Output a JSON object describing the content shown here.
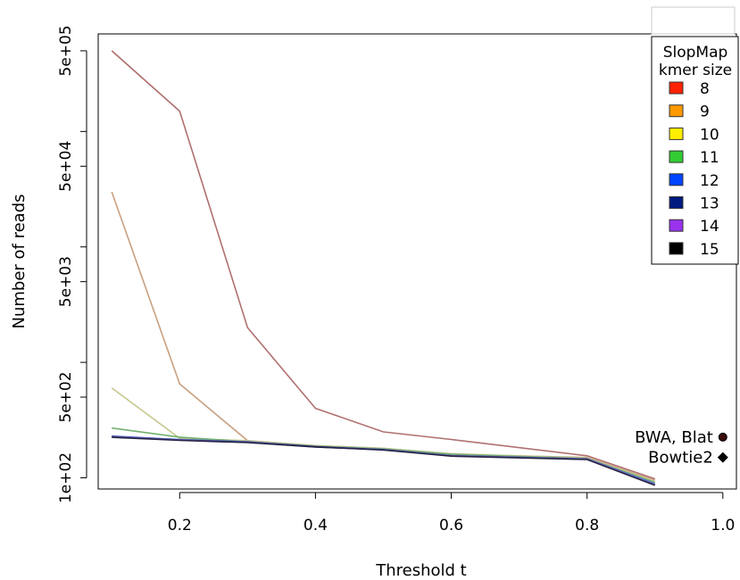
{
  "chart_data": {
    "type": "line",
    "xlabel": "Threshold t",
    "ylabel": "Number of reads",
    "x_scale": "linear",
    "y_scale": "log",
    "xlim": [
      0.08,
      1.02
    ],
    "ylim": [
      80,
      700000
    ],
    "x_ticks": [
      0.2,
      0.4,
      0.6,
      0.8,
      1.0
    ],
    "x_tick_labels": [
      "0.2",
      "0.4",
      "0.6",
      "0.8",
      "1.0"
    ],
    "y_ticks": [
      100,
      500,
      5000,
      50000,
      500000
    ],
    "y_tick_labels": [
      "1e+02",
      "5e+02",
      "5e+03",
      "5e+04",
      "5e+05"
    ],
    "y_minor_ticks": [
      1000,
      10000,
      100000
    ],
    "grid": false,
    "legend": {
      "title_line1": "SlopMap",
      "title_line2": "kmer size",
      "placement": "top-right",
      "entries": [
        {
          "label": "8",
          "color": "#ff2200"
        },
        {
          "label": "9",
          "color": "#ff9900"
        },
        {
          "label": "10",
          "color": "#ffee00"
        },
        {
          "label": "11",
          "color": "#33cc33"
        },
        {
          "label": "12",
          "color": "#0044ff"
        },
        {
          "label": "13",
          "color": "#001a80"
        },
        {
          "label": "14",
          "color": "#9933ee"
        },
        {
          "label": "15",
          "color": "#000000"
        }
      ]
    },
    "x": [
      0.1,
      0.2,
      0.3,
      0.4,
      0.5,
      0.6,
      0.8,
      0.9
    ],
    "series": [
      {
        "stroke": "#b07070",
        "values": [
          500000,
          150000,
          2000,
          400,
          250,
          215,
          155,
          98
        ]
      },
      {
        "stroke": "#c8a080",
        "values": [
          30000,
          650,
          210,
          190,
          180,
          160,
          150,
          95
        ]
      },
      {
        "stroke": "#c8c890",
        "values": [
          600,
          220,
          210,
          190,
          180,
          162,
          148,
          93
        ]
      },
      {
        "stroke": "#70b070",
        "values": [
          270,
          225,
          205,
          188,
          178,
          160,
          147,
          91
        ]
      },
      {
        "stroke": "#5577dd",
        "values": [
          230,
          215,
          205,
          186,
          176,
          156,
          146,
          89
        ]
      },
      {
        "stroke": "#1a2a80",
        "values": [
          228,
          213,
          204,
          186,
          175,
          155,
          145,
          87
        ]
      },
      {
        "stroke": "#8866aa",
        "values": [
          226,
          212,
          203,
          185,
          175,
          155,
          145,
          87
        ]
      },
      {
        "stroke": "#222244",
        "values": [
          224,
          211,
          202,
          185,
          174,
          154,
          144,
          86
        ]
      }
    ],
    "points": [
      {
        "label": "BWA, Blat",
        "x": 1.0,
        "y": 225,
        "shape": "circle",
        "color": "#3a0a0a"
      },
      {
        "label": "Bowtie2",
        "x": 1.0,
        "y": 150,
        "shape": "diamond",
        "color": "#000000"
      }
    ]
  }
}
